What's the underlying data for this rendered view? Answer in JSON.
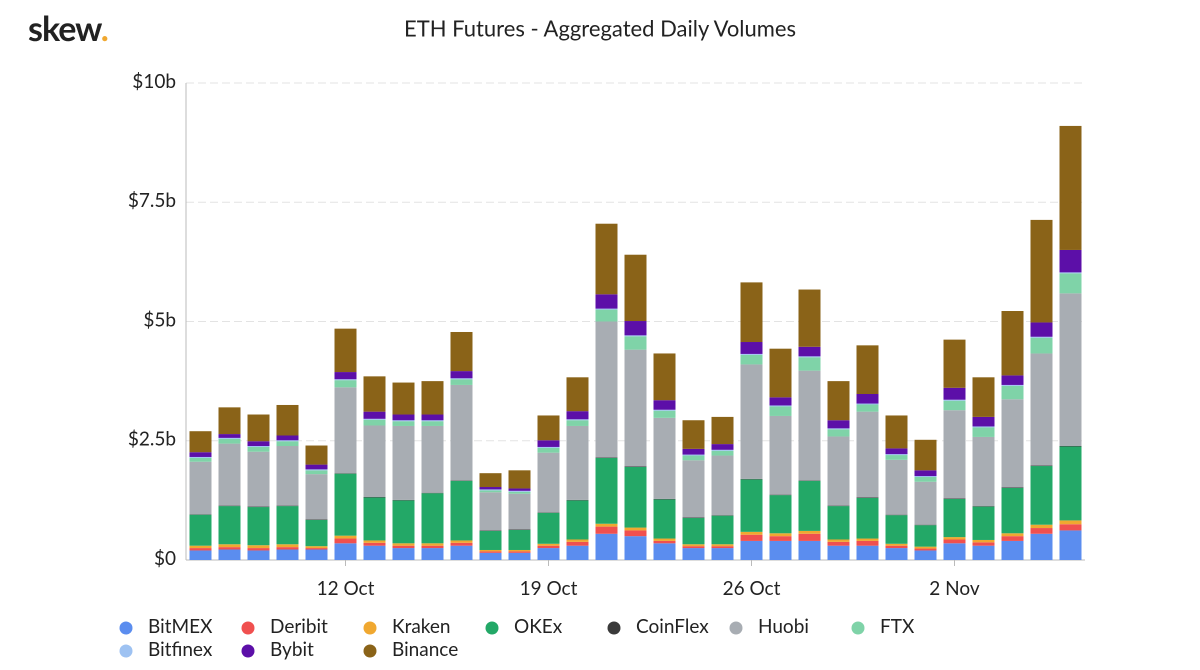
{
  "logo": {
    "text": "skew",
    "dot": "."
  },
  "chart_data": {
    "type": "stacked-bar",
    "title": "ETH Futures - Aggregated Daily Volumes",
    "categories": [
      null,
      null,
      null,
      null,
      null,
      "12 Oct",
      null,
      null,
      null,
      null,
      null,
      null,
      "19 Oct",
      null,
      null,
      null,
      null,
      null,
      null,
      "26 Oct",
      null,
      null,
      null,
      null,
      null,
      null,
      "2 Nov",
      null,
      null,
      null,
      null
    ],
    "ylim": [
      0,
      10
    ],
    "yticks": [
      {
        "value": 0,
        "label": "$0"
      },
      {
        "value": 2.5,
        "label": "$2.5b"
      },
      {
        "value": 5,
        "label": "$5b"
      },
      {
        "value": 7.5,
        "label": "$7.5b"
      },
      {
        "value": 10,
        "label": "$10b"
      }
    ],
    "grid": true,
    "series": [
      {
        "name": "BitMEX",
        "color": "#5b8def",
        "values": [
          0.2,
          0.22,
          0.2,
          0.22,
          0.22,
          0.35,
          0.3,
          0.25,
          0.25,
          0.3,
          0.15,
          0.15,
          0.25,
          0.3,
          0.55,
          0.5,
          0.35,
          0.25,
          0.25,
          0.4,
          0.4,
          0.4,
          0.3,
          0.3,
          0.25,
          0.2,
          0.35,
          0.3,
          0.4,
          0.55,
          0.62
        ]
      },
      {
        "name": "Deribit",
        "color": "#f0504f",
        "values": [
          0.05,
          0.05,
          0.05,
          0.05,
          0.03,
          0.1,
          0.06,
          0.05,
          0.05,
          0.06,
          0.03,
          0.03,
          0.05,
          0.08,
          0.15,
          0.12,
          0.05,
          0.04,
          0.04,
          0.13,
          0.1,
          0.15,
          0.08,
          0.1,
          0.05,
          0.04,
          0.08,
          0.07,
          0.1,
          0.12,
          0.13
        ]
      },
      {
        "name": "Kraken",
        "color": "#f0a830",
        "values": [
          0.05,
          0.06,
          0.06,
          0.06,
          0.04,
          0.06,
          0.05,
          0.05,
          0.05,
          0.05,
          0.03,
          0.03,
          0.04,
          0.05,
          0.06,
          0.06,
          0.05,
          0.04,
          0.04,
          0.06,
          0.06,
          0.06,
          0.05,
          0.05,
          0.04,
          0.04,
          0.05,
          0.05,
          0.06,
          0.07,
          0.08
        ]
      },
      {
        "name": "OKEx",
        "color": "#23a867",
        "values": [
          0.65,
          0.8,
          0.8,
          0.8,
          0.55,
          1.3,
          0.9,
          0.9,
          1.05,
          1.25,
          0.4,
          0.42,
          0.65,
          0.82,
          1.38,
          1.27,
          0.82,
          0.55,
          0.6,
          1.1,
          0.8,
          1.05,
          0.7,
          0.85,
          0.6,
          0.45,
          0.8,
          0.7,
          0.95,
          1.23,
          1.55
        ]
      },
      {
        "name": "CoinFlex",
        "color": "#3a3a3a",
        "values": [
          0.01,
          0.01,
          0.01,
          0.01,
          0.01,
          0.01,
          0.01,
          0.01,
          0.01,
          0.01,
          0.01,
          0.01,
          0.01,
          0.01,
          0.01,
          0.01,
          0.01,
          0.01,
          0.01,
          0.01,
          0.01,
          0.01,
          0.01,
          0.01,
          0.01,
          0.01,
          0.01,
          0.01,
          0.01,
          0.01,
          0.01
        ]
      },
      {
        "name": "Huobi",
        "color": "#a8adb3",
        "values": [
          1.1,
          1.3,
          1.15,
          1.25,
          0.95,
          1.8,
          1.5,
          1.55,
          1.4,
          2.0,
          0.8,
          0.75,
          1.25,
          1.55,
          2.85,
          2.45,
          1.7,
          1.2,
          1.25,
          2.4,
          1.65,
          2.3,
          1.45,
          1.8,
          1.15,
          0.9,
          1.85,
          1.45,
          1.85,
          2.35,
          3.2
        ]
      },
      {
        "name": "FTX",
        "color": "#7fd3a8",
        "values": [
          0.08,
          0.1,
          0.1,
          0.1,
          0.08,
          0.15,
          0.12,
          0.1,
          0.1,
          0.12,
          0.04,
          0.04,
          0.1,
          0.12,
          0.25,
          0.28,
          0.15,
          0.1,
          0.1,
          0.2,
          0.2,
          0.28,
          0.15,
          0.15,
          0.1,
          0.1,
          0.2,
          0.2,
          0.28,
          0.33,
          0.42
        ]
      },
      {
        "name": "Bitfinex",
        "color": "#9ec2f2",
        "values": [
          0.02,
          0.02,
          0.02,
          0.02,
          0.02,
          0.02,
          0.02,
          0.02,
          0.02,
          0.02,
          0.02,
          0.02,
          0.02,
          0.02,
          0.02,
          0.02,
          0.02,
          0.02,
          0.02,
          0.02,
          0.02,
          0.02,
          0.02,
          0.02,
          0.02,
          0.02,
          0.02,
          0.02,
          0.02,
          0.02,
          0.02
        ]
      },
      {
        "name": "Bybit",
        "color": "#5c0fa8",
        "values": [
          0.1,
          0.08,
          0.1,
          0.1,
          0.1,
          0.15,
          0.15,
          0.12,
          0.12,
          0.15,
          0.05,
          0.05,
          0.14,
          0.17,
          0.3,
          0.3,
          0.2,
          0.12,
          0.12,
          0.25,
          0.17,
          0.2,
          0.17,
          0.2,
          0.12,
          0.12,
          0.25,
          0.2,
          0.2,
          0.3,
          0.47
        ]
      },
      {
        "name": "Binance",
        "color": "#8a6318",
        "values": [
          0.44,
          0.56,
          0.56,
          0.64,
          0.4,
          0.91,
          0.74,
          0.67,
          0.7,
          0.82,
          0.29,
          0.38,
          0.52,
          0.71,
          1.48,
          1.39,
          0.98,
          0.6,
          0.57,
          1.25,
          1.02,
          1.2,
          0.82,
          1.02,
          0.69,
          0.64,
          1.01,
          0.83,
          1.35,
          2.15,
          2.6
        ]
      }
    ]
  }
}
